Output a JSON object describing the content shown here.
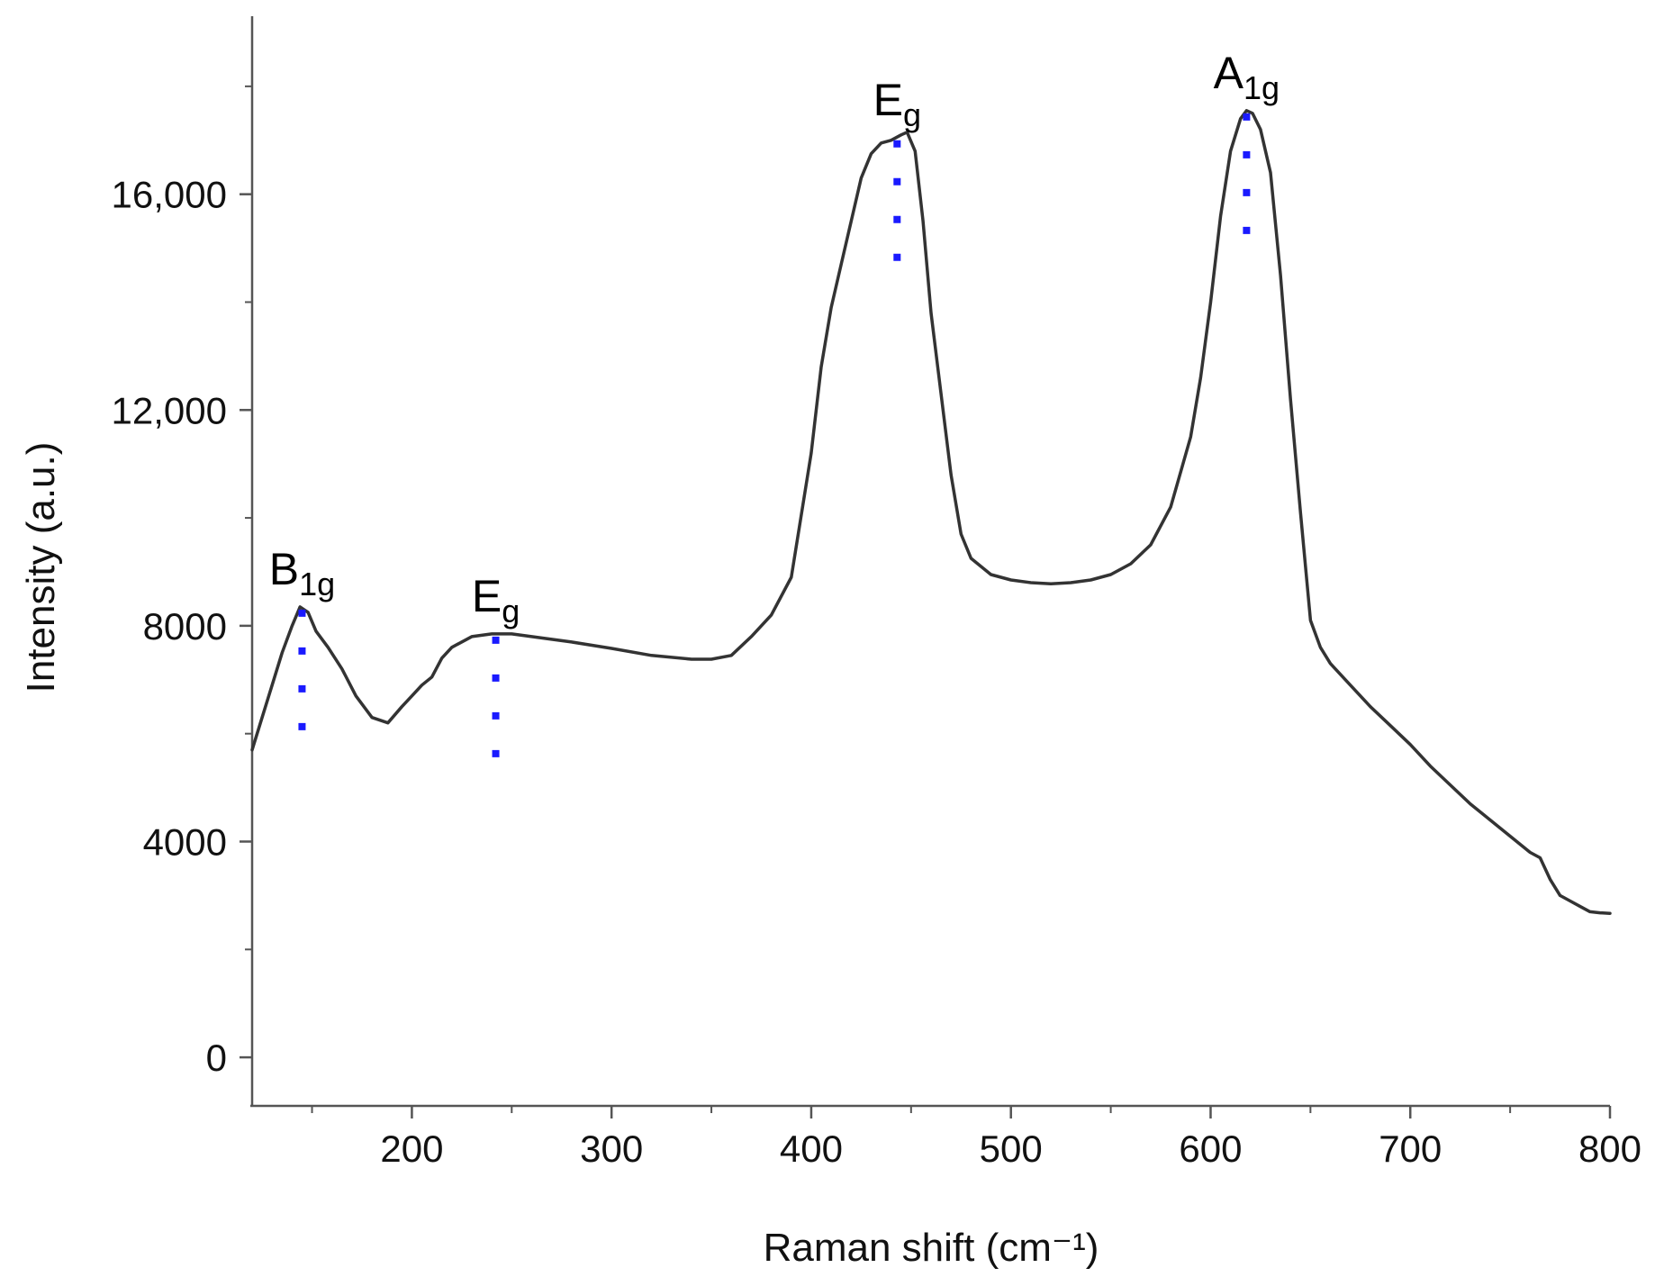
{
  "chart_data": {
    "type": "line",
    "title": "",
    "xlabel": "Raman shift (cm⁻¹)",
    "ylabel": "Intensity (a.u.)",
    "xlim": [
      120,
      800
    ],
    "ylim": [
      -900,
      19300
    ],
    "grid": false,
    "legend": "none",
    "x_ticks": [
      200,
      300,
      400,
      500,
      600,
      700,
      800
    ],
    "x_tick_labels": [
      "200",
      "300",
      "400",
      "500",
      "600",
      "700",
      "800"
    ],
    "x_minor_ticks": [
      150,
      250,
      350,
      450,
      550,
      650,
      750
    ],
    "y_ticks": [
      0,
      4000,
      8000,
      12000,
      16000
    ],
    "y_tick_labels": [
      "0",
      "4000",
      "8000",
      "12,000",
      "16,000"
    ],
    "y_minor_ticks": [
      2000,
      6000,
      10000,
      14000,
      18000
    ],
    "line_color": "#333333",
    "marker_color": "#1a1aff",
    "series": [
      {
        "x": [
          120,
          125,
          130,
          135,
          140,
          144,
          148,
          152,
          158,
          165,
          172,
          180,
          188,
          195,
          200,
          205,
          210,
          215,
          220,
          230,
          240,
          250,
          260,
          270,
          280,
          300,
          320,
          340,
          350,
          360,
          370,
          380,
          390,
          400,
          405,
          410,
          415,
          420,
          425,
          430,
          435,
          440,
          445,
          448,
          452,
          456,
          460,
          465,
          470,
          475,
          480,
          490,
          500,
          510,
          520,
          530,
          540,
          550,
          560,
          570,
          580,
          590,
          595,
          600,
          605,
          610,
          615,
          618,
          621,
          625,
          630,
          635,
          640,
          645,
          650,
          655,
          660,
          670,
          680,
          690,
          700,
          710,
          720,
          730,
          740,
          750,
          760,
          765,
          770,
          775,
          780,
          785,
          790,
          795,
          800
        ],
        "y": [
          5700,
          6300,
          6900,
          7500,
          8000,
          8350,
          8250,
          7900,
          7600,
          7200,
          6700,
          6300,
          6200,
          6500,
          6700,
          6900,
          7050,
          7400,
          7600,
          7800,
          7850,
          7850,
          7800,
          7750,
          7700,
          7580,
          7450,
          7380,
          7380,
          7450,
          7800,
          8200,
          8900,
          11200,
          12800,
          13900,
          14700,
          15500,
          16300,
          16750,
          16950,
          17000,
          17100,
          17150,
          16800,
          15500,
          13800,
          12300,
          10800,
          9700,
          9250,
          8950,
          8850,
          8800,
          8780,
          8800,
          8850,
          8950,
          9150,
          9500,
          10200,
          11500,
          12600,
          14000,
          15600,
          16800,
          17400,
          17550,
          17500,
          17200,
          16400,
          14500,
          12200,
          10100,
          8100,
          7600,
          7300,
          6900,
          6500,
          6150,
          5800,
          5400,
          5050,
          4700,
          4400,
          4100,
          3800,
          3700,
          3300,
          3000,
          2900,
          2800,
          2700,
          2680,
          2670
        ]
      }
    ],
    "annotations": [
      {
        "base": "B",
        "sub": "1g",
        "x": 145,
        "y_top": 8300,
        "y_bottom": 6000
      },
      {
        "base": "E",
        "sub": "g",
        "x": 242,
        "y_top": 7800,
        "y_bottom": 5350
      },
      {
        "base": "E",
        "sub": "g",
        "x": 443,
        "y_top": 17000,
        "y_bottom": 14600
      },
      {
        "base": "A",
        "sub": "1g",
        "x": 618,
        "y_top": 17500,
        "y_bottom": 15100
      }
    ]
  }
}
